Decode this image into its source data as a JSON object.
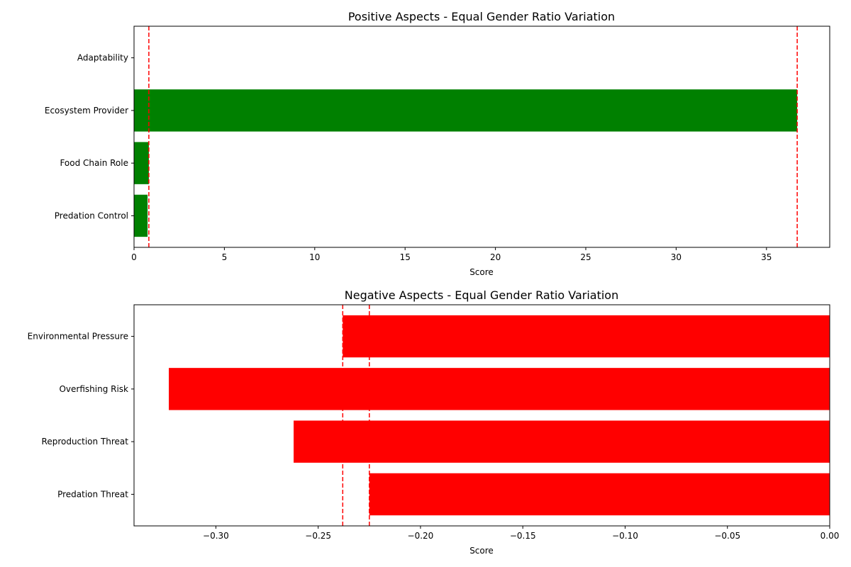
{
  "chart_data": [
    {
      "type": "bar",
      "orientation": "horizontal",
      "title": "Positive Aspects - Equal Gender Ratio Variation",
      "xlabel": "Score",
      "ylabel": "",
      "categories": [
        "Adaptability",
        "Ecosystem Provider",
        "Food Chain Role",
        "Predation Control"
      ],
      "values": [
        0.0,
        36.7,
        0.82,
        0.75
      ],
      "xlim": [
        0,
        38.5
      ],
      "xticks": [
        0,
        5,
        10,
        15,
        20,
        25,
        30,
        35
      ],
      "xtick_labels": [
        "0",
        "5",
        "10",
        "15",
        "20",
        "25",
        "30",
        "35"
      ],
      "bar_color": "#008000",
      "reference_lines": [
        0.82,
        36.7
      ],
      "reference_line_color": "#ff0000",
      "grid": false,
      "legend": "none"
    },
    {
      "type": "bar",
      "orientation": "horizontal",
      "title": "Negative Aspects - Equal Gender Ratio Variation",
      "xlabel": "Score",
      "ylabel": "",
      "categories": [
        "Environmental Pressure",
        "Overfishing Risk",
        "Reproduction Threat",
        "Predation Threat"
      ],
      "values": [
        -0.238,
        -0.323,
        -0.262,
        -0.225
      ],
      "xlim": [
        -0.34,
        0.0
      ],
      "xticks": [
        -0.3,
        -0.25,
        -0.2,
        -0.15,
        -0.1,
        -0.05,
        0.0
      ],
      "xtick_labels": [
        "−0.30",
        "−0.25",
        "−0.20",
        "−0.15",
        "−0.10",
        "−0.05",
        "0.00"
      ],
      "bar_color": "#ff0000",
      "reference_lines": [
        -0.238,
        -0.225
      ],
      "reference_line_color": "#ff0000",
      "grid": false,
      "legend": "none"
    }
  ]
}
